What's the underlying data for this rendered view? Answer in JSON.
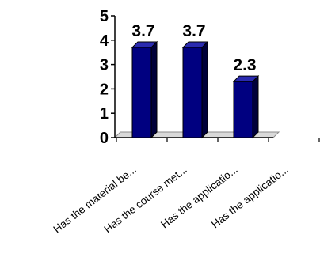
{
  "chart_data": {
    "type": "bar",
    "style": "3d-column",
    "categories": [
      "Has the material be...",
      "Has the course met...",
      "Has the applicatio...",
      "Has the applicatio..."
    ],
    "values": [
      3.7,
      3.7,
      2.3,
      null
    ],
    "data_labels": [
      "3.7",
      "3.7",
      "2.3",
      ""
    ],
    "y_ticks": [
      "0",
      "1",
      "2",
      "3",
      "4",
      "5"
    ],
    "ylim": [
      0,
      5
    ],
    "grid": false,
    "legend": false,
    "colors": {
      "bar_front": "#000080",
      "bar_side": "#00003a",
      "bar_top": "#2a2ab0",
      "outline": "#000000",
      "floor": "#d9d9d9"
    }
  }
}
